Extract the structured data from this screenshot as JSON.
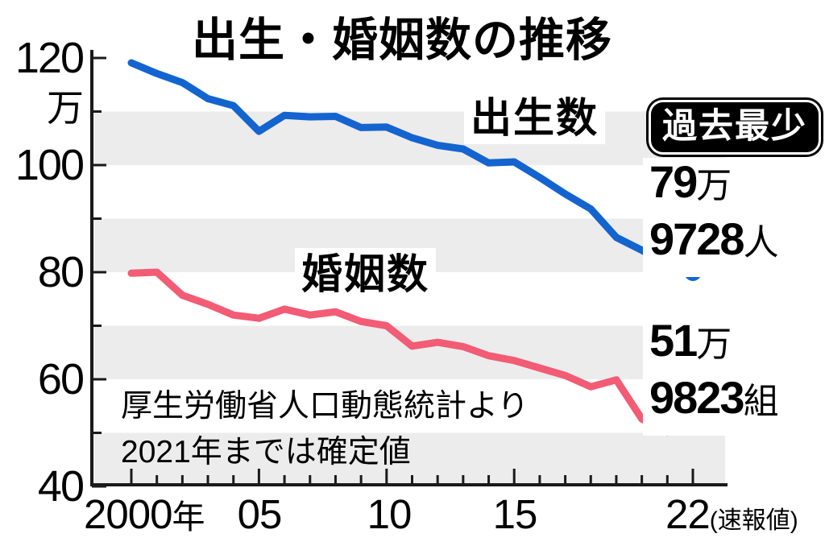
{
  "title": "出生・婚姻数の推移",
  "badge": {
    "label": "過去最少"
  },
  "series_labels": {
    "births": "出生数",
    "marriages": "婚姻数"
  },
  "y_axis": {
    "unit": "万",
    "l120": "120",
    "l100": "100",
    "l80": "80",
    "l60": "60",
    "l40": "40"
  },
  "x_axis": {
    "l2000": "2000",
    "l2000_unit": "年",
    "l05": "05",
    "l10": "10",
    "l15": "15",
    "l22": "22",
    "l22_suffix": "(速報値)"
  },
  "births_value": {
    "num1": "79",
    "unit1": "万",
    "num2": "9728",
    "unit2": "人"
  },
  "marriages_value": {
    "num1": "51",
    "unit1": "万",
    "num2": "9823",
    "unit2": "組"
  },
  "source": {
    "line1": "厚生労働省人口動態統計より",
    "line2": "2021年までは確定値"
  },
  "colors": {
    "births": "#1464d0",
    "marriages": "#f25c74",
    "band": "#ececec",
    "axis": "#1a1a1a",
    "badge_bg": "#000000",
    "badge_text": "#ffffff"
  },
  "chart_data": {
    "type": "line",
    "title": "出生・婚姻数の推移",
    "x": [
      2000,
      2001,
      2002,
      2003,
      2004,
      2005,
      2006,
      2007,
      2008,
      2009,
      2010,
      2011,
      2012,
      2013,
      2014,
      2015,
      2016,
      2017,
      2018,
      2019,
      2020,
      2021,
      2022
    ],
    "x_tick_years": [
      2000,
      2005,
      2010,
      2015,
      2022
    ],
    "x_tick_labels": [
      "2000年",
      "05",
      "10",
      "15",
      "22(速報値)"
    ],
    "ylim": [
      40,
      120
    ],
    "y_tick_step": 10,
    "y_labeled_ticks": [
      120,
      100,
      80,
      60,
      40
    ],
    "y_unit": "万",
    "grid": "alternating-gray-horizontal-bands",
    "annotation": "過去最少",
    "series": [
      {
        "key": "births",
        "name": "出生数",
        "values": [
          119.1,
          117.1,
          115.4,
          112.4,
          111.1,
          106.3,
          109.3,
          109.0,
          109.1,
          107.0,
          107.1,
          105.1,
          103.7,
          103.0,
          100.4,
          100.6,
          97.7,
          94.6,
          91.8,
          86.5,
          84.1,
          81.2,
          79.97
        ],
        "end_label": "79万9728人",
        "end_value": 799728
      },
      {
        "key": "marriages",
        "name": "婚姻数",
        "values": [
          79.8,
          80.0,
          75.7,
          74.0,
          72.0,
          71.4,
          73.1,
          72.0,
          72.6,
          70.8,
          70.0,
          66.2,
          66.9,
          66.1,
          64.4,
          63.5,
          62.1,
          60.7,
          58.6,
          59.9,
          52.6,
          50.1,
          51.98
        ],
        "end_label": "51万9823組",
        "end_value": 519823
      }
    ]
  }
}
